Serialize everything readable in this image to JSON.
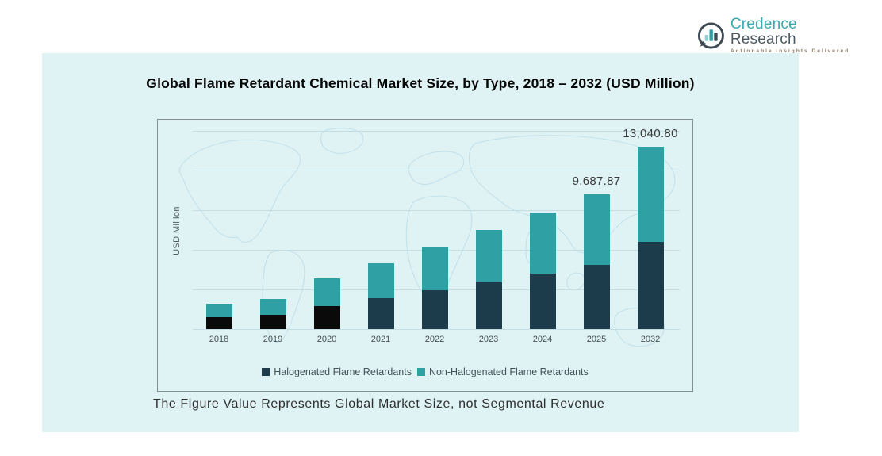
{
  "logo": {
    "brand_primary": "Credence",
    "brand_secondary": " Research",
    "tagline": "Actionable Insights Delivered",
    "icon": "bar-chart-bubble-icon",
    "colors": {
      "primary": "#3aa9b0",
      "secondary": "#4d5a64",
      "tagline": "#93816f",
      "icon_ring": "#3d4a54"
    }
  },
  "slide": {
    "background": "#dff3f4",
    "footnote": "The Figure Value Represents Global Market Size, not Segmental Revenue"
  },
  "chart_data": {
    "type": "bar",
    "stacked": true,
    "title": "Global Flame Retardant Chemical Market Size, by Type, 2018 – 2032 (USD Million)",
    "xlabel": "",
    "ylabel": "USD Million",
    "ylim": [
      0,
      15000
    ],
    "grid": true,
    "legend_position": "bottom-inside",
    "categories": [
      "2018",
      "2019",
      "2020",
      "2021",
      "2022",
      "2023",
      "2024",
      "2025",
      "2032"
    ],
    "series": [
      {
        "name": "Halogenated Flame Retardants",
        "color": "#1c3b4b",
        "segment_colors": [
          "#0a0a0a",
          "#0a0a0a",
          "#0a0a0a",
          "#1c3b4b",
          "#1c3b4b",
          "#1c3b4b",
          "#1c3b4b",
          "#1c3b4b",
          "#1c3b4b"
        ],
        "values": [
          860,
          1030,
          1650,
          2215,
          2765,
          3360,
          3965,
          4600,
          6245
        ]
      },
      {
        "name": "Non-Halogenated Flame Retardants",
        "color": "#2fa0a4",
        "values": [
          980,
          1130,
          1975,
          2520,
          3080,
          3760,
          4415,
          5087.87,
          6795.8
        ]
      }
    ],
    "totals": [
      1840,
      2160,
      3625,
      4735,
      5845,
      7120,
      8380,
      9687.87,
      13040.8
    ],
    "data_labels": {
      "2025": "9,687.87",
      "2032": "13,040.80"
    },
    "theme": {
      "plot_background": "#dff3f4",
      "map_outline": "#c2e0ea",
      "gridline": "#c3dde2",
      "box_border": "#848f93",
      "label_text": "#3a3a3a",
      "axis_text": "#474f53"
    }
  }
}
